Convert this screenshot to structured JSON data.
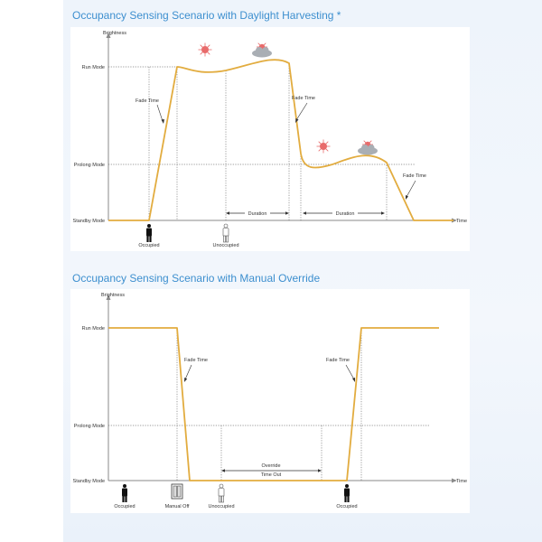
{
  "colors": {
    "curve": "#e2ac3f",
    "axis": "#8a8a8a",
    "title": "#3d8fcf",
    "sun": "#e86b6b",
    "cloud": "#a9aeb4"
  },
  "diagram1": {
    "title": "Occupancy Sensing Scenario with Daylight Harvesting *",
    "y_axis_label": "Brightness",
    "x_axis_label": "Time",
    "levels": [
      "Run Mode",
      "Prolong Mode",
      "Standby Mode"
    ],
    "fade_labels": [
      "Fade Time",
      "Fade Time",
      "Fade Time"
    ],
    "duration_labels": [
      "Duration",
      "Duration"
    ],
    "events": [
      "Occupied",
      "Unoccupied"
    ],
    "weather_icons": [
      "sun-icon",
      "sun-cloud-icon",
      "sun-icon",
      "sun-cloud-icon"
    ]
  },
  "diagram2": {
    "title": "Occupancy Sensing Scenario with Manual Override",
    "y_axis_label": "Brightness",
    "x_axis_label": "Time",
    "levels": [
      "Run Mode",
      "Prolong Mode",
      "Standby Mode"
    ],
    "fade_labels": [
      "Fade Time",
      "Fade Time"
    ],
    "override_label_line1": "Override",
    "override_label_line2": "Time Out",
    "events": [
      "Occupied",
      "Manual Off",
      "Unoccupied",
      "Occupied"
    ]
  }
}
